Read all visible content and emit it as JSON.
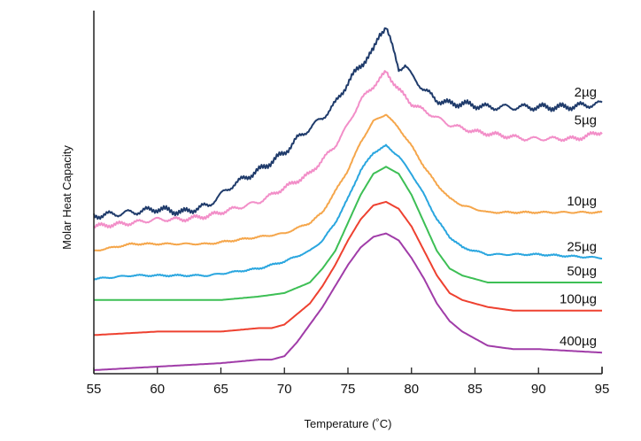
{
  "chart_data": {
    "type": "line",
    "title": "",
    "xlabel": "Temperature (˚C)",
    "ylabel": "Molar Heat Capacity",
    "xlim": [
      55,
      95
    ],
    "ylim": [
      0,
      100
    ],
    "x_ticks": [
      55,
      60,
      65,
      70,
      75,
      80,
      85,
      90,
      95
    ],
    "y_ticks": [],
    "grid": false,
    "legend": "inline-right",
    "series": [
      {
        "name": "2µg",
        "color": "#1f3b6b",
        "noise": 1.2,
        "x": [
          55,
          58,
          60,
          62,
          64,
          66,
          68,
          70,
          71,
          72,
          73,
          74,
          75,
          76,
          77,
          77.5,
          78,
          78.5,
          79,
          79.5,
          80,
          81,
          82,
          83,
          84,
          86,
          88,
          90,
          92,
          95
        ],
        "y": [
          44,
          45,
          46,
          45,
          47,
          53,
          57,
          62,
          66,
          69,
          72,
          76,
          82,
          87,
          91,
          96,
          98,
          92,
          86,
          87,
          84,
          80,
          77,
          76,
          76,
          75,
          75,
          75,
          75,
          76
        ]
      },
      {
        "name": "5µg",
        "color": "#f28ec8",
        "noise": 0.8,
        "x": [
          55,
          58,
          60,
          62,
          64,
          66,
          68,
          70,
          72,
          74,
          75,
          76,
          77,
          78,
          79,
          80,
          81,
          82,
          83,
          84,
          85,
          87,
          89,
          91,
          93,
          95
        ],
        "y": [
          41,
          42,
          43,
          43,
          44,
          46,
          48,
          52,
          56,
          64,
          70,
          77,
          81,
          85,
          80,
          76,
          74,
          72,
          70,
          69,
          68,
          67,
          66,
          66,
          66,
          68
        ]
      },
      {
        "name": "10µg",
        "color": "#f5a64b",
        "noise": 0.3,
        "x": [
          55,
          58,
          60,
          62,
          64,
          66,
          68,
          70,
          72,
          73,
          74,
          75,
          76,
          77,
          78,
          79,
          80,
          81,
          82,
          83,
          84,
          85,
          86,
          88,
          90,
          95
        ],
        "y": [
          34,
          36,
          36,
          36,
          36,
          37,
          38,
          39,
          42,
          45,
          51,
          57,
          65,
          71,
          73,
          69,
          64,
          58,
          53,
          49,
          47,
          46,
          45,
          45,
          45,
          45
        ]
      },
      {
        "name": "25µg",
        "color": "#2aa6df",
        "noise": 0.3,
        "x": [
          55,
          58,
          60,
          62,
          64,
          66,
          68,
          70,
          72,
          73,
          74,
          75,
          76,
          77,
          78,
          79,
          80,
          81,
          82,
          83,
          84,
          85,
          86,
          88,
          90,
          95
        ],
        "y": [
          26,
          27,
          27,
          27,
          27,
          28,
          29,
          31,
          34,
          37,
          42,
          49,
          57,
          62,
          64,
          61,
          56,
          50,
          43,
          38,
          35,
          34,
          33,
          33,
          33,
          32
        ]
      },
      {
        "name": "50µg",
        "color": "#3dbf55",
        "noise": 0,
        "x": [
          55,
          60,
          65,
          68,
          70,
          72,
          73,
          74,
          75,
          76,
          77,
          78,
          79,
          80,
          81,
          82,
          83,
          84,
          85,
          86,
          88,
          90,
          95
        ],
        "y": [
          20,
          20,
          20,
          21,
          22,
          25,
          29,
          34,
          42,
          50,
          56,
          58,
          56,
          50,
          42,
          34,
          29,
          27,
          26,
          25,
          25,
          25,
          25
        ]
      },
      {
        "name": "100µg",
        "color": "#ee4130",
        "noise": 0,
        "x": [
          55,
          60,
          65,
          68,
          69,
          70,
          72,
          73,
          74,
          75,
          76,
          77,
          78,
          79,
          80,
          81,
          82,
          83,
          84,
          85,
          86,
          88,
          90,
          95
        ],
        "y": [
          10,
          11,
          11,
          12,
          12,
          13,
          19,
          24,
          30,
          37,
          43,
          47,
          48,
          46,
          41,
          34,
          27,
          22,
          20,
          19,
          18,
          17,
          17,
          17
        ]
      },
      {
        "name": "400µg",
        "color": "#a03ca8",
        "noise": 0,
        "x": [
          55,
          60,
          65,
          68,
          69,
          70,
          71,
          72,
          73,
          74,
          75,
          76,
          77,
          78,
          79,
          80,
          81,
          82,
          83,
          84,
          85,
          86,
          88,
          90,
          95
        ],
        "y": [
          0,
          1,
          2,
          3,
          3,
          4,
          8,
          13,
          18,
          24,
          30,
          35,
          38,
          39,
          37,
          32,
          26,
          19,
          14,
          11,
          9,
          7,
          6,
          6,
          5
        ]
      }
    ]
  }
}
